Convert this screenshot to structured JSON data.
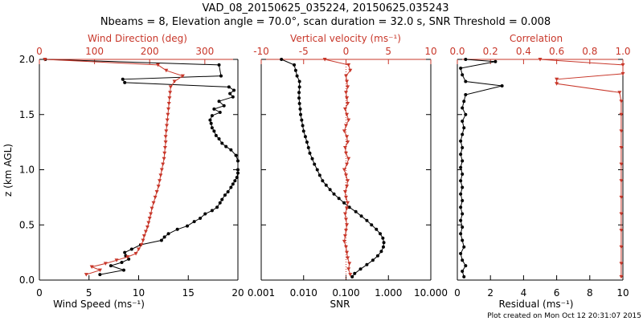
{
  "title_line1": "VAD_08_20150625_035224, 20150625.035243",
  "title_line2": "Nbeams = 8, Elevation angle = 70.0°, scan duration = 32.0 s, SNR Threshold = 0.008",
  "footer": "Plot created on Mon Oct 12 20:31:07 2015",
  "colors": {
    "black": "#000000",
    "red": "#c8372a"
  },
  "chart_data": [
    {
      "type": "line",
      "ylabel": "z (km AGL)",
      "ylim": [
        0,
        2.0
      ],
      "yticks": [
        "0.0",
        "0.5",
        "1.0",
        "1.5",
        "2.0"
      ],
      "bottom_axis": {
        "label": "Wind Speed (ms⁻¹)",
        "range": [
          0,
          20
        ],
        "ticks": [
          "0",
          "5",
          "10",
          "15",
          "20"
        ],
        "color": "#000000"
      },
      "top_axis": {
        "label": "Wind Direction (deg)",
        "range": [
          0,
          360
        ],
        "ticks": [
          "0",
          "100",
          "200",
          "300"
        ],
        "color": "#c8372a"
      },
      "series": [
        {
          "color": "#000000",
          "axis": "bottom",
          "points": [
            [
              6.1,
              0.05
            ],
            [
              8.5,
              0.09
            ],
            [
              7.2,
              0.13
            ],
            [
              8.3,
              0.16
            ],
            [
              9.0,
              0.19
            ],
            [
              8.7,
              0.22
            ],
            [
              8.6,
              0.25
            ],
            [
              9.3,
              0.28
            ],
            [
              10.2,
              0.32
            ],
            [
              12.3,
              0.36
            ],
            [
              12.6,
              0.39
            ],
            [
              13.0,
              0.42
            ],
            [
              13.9,
              0.46
            ],
            [
              14.9,
              0.49
            ],
            [
              15.6,
              0.53
            ],
            [
              16.2,
              0.56
            ],
            [
              16.7,
              0.6
            ],
            [
              17.4,
              0.63
            ],
            [
              17.9,
              0.66
            ],
            [
              18.2,
              0.7
            ],
            [
              18.4,
              0.73
            ],
            [
              18.7,
              0.77
            ],
            [
              19.0,
              0.8
            ],
            [
              19.3,
              0.84
            ],
            [
              19.5,
              0.87
            ],
            [
              19.7,
              0.9
            ],
            [
              19.9,
              0.93
            ],
            [
              20.0,
              0.97
            ],
            [
              20.0,
              1.0
            ],
            [
              20.0,
              1.08
            ],
            [
              19.8,
              1.13
            ],
            [
              19.3,
              1.18
            ],
            [
              18.8,
              1.21
            ],
            [
              18.4,
              1.24
            ],
            [
              18.1,
              1.28
            ],
            [
              17.8,
              1.31
            ],
            [
              17.6,
              1.35
            ],
            [
              17.4,
              1.38
            ],
            [
              17.3,
              1.42
            ],
            [
              17.2,
              1.45
            ],
            [
              17.4,
              1.49
            ],
            [
              18.2,
              1.52
            ],
            [
              17.6,
              1.55
            ],
            [
              18.6,
              1.58
            ],
            [
              18.1,
              1.62
            ],
            [
              19.5,
              1.66
            ],
            [
              19.2,
              1.69
            ],
            [
              19.6,
              1.72
            ],
            [
              19.1,
              1.75
            ],
            [
              8.6,
              1.79
            ],
            [
              8.4,
              1.82
            ],
            [
              18.3,
              1.85
            ],
            [
              18.1,
              1.95
            ],
            [
              0.6,
              2.0
            ]
          ]
        },
        {
          "color": "#c8372a",
          "axis": "top",
          "points": [
            [
              85,
              0.05
            ],
            [
              110,
              0.09
            ],
            [
              95,
              0.12
            ],
            [
              120,
              0.15
            ],
            [
              140,
              0.18
            ],
            [
              160,
              0.21
            ],
            [
              175,
              0.24
            ],
            [
              180,
              0.28
            ],
            [
              185,
              0.32
            ],
            [
              188,
              0.36
            ],
            [
              190,
              0.4
            ],
            [
              193,
              0.44
            ],
            [
              196,
              0.48
            ],
            [
              198,
              0.52
            ],
            [
              200,
              0.56
            ],
            [
              202,
              0.6
            ],
            [
              204,
              0.65
            ],
            [
              207,
              0.7
            ],
            [
              210,
              0.75
            ],
            [
              213,
              0.8
            ],
            [
              216,
              0.85
            ],
            [
              218,
              0.9
            ],
            [
              220,
              0.95
            ],
            [
              222,
              1.0
            ],
            [
              224,
              1.05
            ],
            [
              226,
              1.1
            ],
            [
              227,
              1.15
            ],
            [
              228,
              1.2
            ],
            [
              229,
              1.25
            ],
            [
              229,
              1.3
            ],
            [
              230,
              1.35
            ],
            [
              231,
              1.4
            ],
            [
              232,
              1.45
            ],
            [
              233,
              1.5
            ],
            [
              234,
              1.55
            ],
            [
              235,
              1.6
            ],
            [
              236,
              1.65
            ],
            [
              237,
              1.7
            ],
            [
              238,
              1.75
            ],
            [
              245,
              1.8
            ],
            [
              260,
              1.85
            ],
            [
              230,
              1.9
            ],
            [
              215,
              1.95
            ],
            [
              10,
              2.0
            ]
          ]
        }
      ]
    },
    {
      "type": "line",
      "ylim": [
        0,
        2.0
      ],
      "bottom_axis": {
        "label": "SNR",
        "scale": "log",
        "range": [
          0.001,
          10
        ],
        "ticks": [
          "0.001",
          "0.010",
          "0.100",
          "1.000",
          "10.000"
        ],
        "color": "#000000"
      },
      "top_axis": {
        "label": "Vertical velocity (ms⁻¹)",
        "range": [
          -10,
          10
        ],
        "ticks": [
          "-10",
          "-5",
          "0",
          "5",
          "10"
        ],
        "color": "#c8372a"
      },
      "series": [
        {
          "color": "#000000",
          "axis": "bottom",
          "points": [
            [
              0.14,
              0.03
            ],
            [
              0.16,
              0.06
            ],
            [
              0.22,
              0.1
            ],
            [
              0.31,
              0.14
            ],
            [
              0.43,
              0.18
            ],
            [
              0.56,
              0.22
            ],
            [
              0.68,
              0.26
            ],
            [
              0.76,
              0.3
            ],
            [
              0.78,
              0.34
            ],
            [
              0.74,
              0.38
            ],
            [
              0.64,
              0.42
            ],
            [
              0.52,
              0.46
            ],
            [
              0.4,
              0.5
            ],
            [
              0.31,
              0.54
            ],
            [
              0.23,
              0.58
            ],
            [
              0.17,
              0.62
            ],
            [
              0.12,
              0.66
            ],
            [
              0.09,
              0.7
            ],
            [
              0.068,
              0.74
            ],
            [
              0.052,
              0.78
            ],
            [
              0.042,
              0.82
            ],
            [
              0.034,
              0.86
            ],
            [
              0.028,
              0.9
            ],
            [
              0.024,
              0.95
            ],
            [
              0.021,
              1.0
            ],
            [
              0.018,
              1.05
            ],
            [
              0.016,
              1.1
            ],
            [
              0.014,
              1.15
            ],
            [
              0.013,
              1.2
            ],
            [
              0.012,
              1.25
            ],
            [
              0.011,
              1.3
            ],
            [
              0.01,
              1.35
            ],
            [
              0.0095,
              1.4
            ],
            [
              0.009,
              1.45
            ],
            [
              0.0085,
              1.5
            ],
            [
              0.0083,
              1.55
            ],
            [
              0.008,
              1.6
            ],
            [
              0.0078,
              1.65
            ],
            [
              0.0078,
              1.7
            ],
            [
              0.008,
              1.75
            ],
            [
              0.008,
              1.8
            ],
            [
              0.007,
              1.85
            ],
            [
              0.0065,
              1.9
            ],
            [
              0.006,
              1.95
            ],
            [
              0.003,
              2.0
            ]
          ]
        },
        {
          "color": "#c8372a",
          "axis": "top",
          "points": [
            [
              0.5,
              0.05
            ],
            [
              0.3,
              0.1
            ],
            [
              0.4,
              0.15
            ],
            [
              0.2,
              0.2
            ],
            [
              0.1,
              0.25
            ],
            [
              0.0,
              0.3
            ],
            [
              -0.2,
              0.35
            ],
            [
              -0.1,
              0.4
            ],
            [
              0.0,
              0.45
            ],
            [
              0.1,
              0.5
            ],
            [
              0.0,
              0.55
            ],
            [
              -0.1,
              0.6
            ],
            [
              0.1,
              0.65
            ],
            [
              0.2,
              0.7
            ],
            [
              0.0,
              0.75
            ],
            [
              -0.1,
              0.8
            ],
            [
              0.1,
              0.85
            ],
            [
              0.2,
              0.9
            ],
            [
              0.0,
              0.95
            ],
            [
              -0.2,
              1.0
            ],
            [
              0.1,
              1.05
            ],
            [
              0.3,
              1.1
            ],
            [
              0.0,
              1.15
            ],
            [
              -0.1,
              1.2
            ],
            [
              0.2,
              1.25
            ],
            [
              0.1,
              1.3
            ],
            [
              -0.2,
              1.35
            ],
            [
              0.0,
              1.4
            ],
            [
              0.3,
              1.45
            ],
            [
              0.1,
              1.5
            ],
            [
              -0.1,
              1.55
            ],
            [
              0.2,
              1.6
            ],
            [
              0.1,
              1.65
            ],
            [
              0.0,
              1.7
            ],
            [
              0.2,
              1.75
            ],
            [
              0.1,
              1.8
            ],
            [
              0.0,
              1.85
            ],
            [
              0.5,
              1.9
            ],
            [
              0.3,
              1.95
            ],
            [
              -2.5,
              2.0
            ]
          ]
        }
      ]
    },
    {
      "type": "line",
      "ylim": [
        0,
        2.0
      ],
      "bottom_axis": {
        "label": "Residual (ms⁻¹)",
        "range": [
          0,
          10
        ],
        "ticks": [
          "0",
          "2",
          "4",
          "6",
          "8",
          "10"
        ],
        "color": "#000000"
      },
      "top_axis": {
        "label": "Correlation",
        "range": [
          0,
          1.0
        ],
        "ticks": [
          "0.0",
          "0.2",
          "0.4",
          "0.6",
          "0.8",
          "1.0"
        ],
        "color": "#c8372a"
      },
      "series": [
        {
          "color": "#000000",
          "axis": "bottom",
          "points": [
            [
              0.4,
              0.03
            ],
            [
              0.3,
              0.08
            ],
            [
              0.5,
              0.13
            ],
            [
              0.3,
              0.18
            ],
            [
              0.2,
              0.24
            ],
            [
              0.4,
              0.3
            ],
            [
              0.3,
              0.36
            ],
            [
              0.2,
              0.42
            ],
            [
              0.3,
              0.48
            ],
            [
              0.2,
              0.54
            ],
            [
              0.3,
              0.6
            ],
            [
              0.2,
              0.66
            ],
            [
              0.3,
              0.72
            ],
            [
              0.2,
              0.78
            ],
            [
              0.3,
              0.84
            ],
            [
              0.2,
              0.9
            ],
            [
              0.3,
              0.96
            ],
            [
              0.2,
              1.02
            ],
            [
              0.3,
              1.08
            ],
            [
              0.2,
              1.14
            ],
            [
              0.3,
              1.2
            ],
            [
              0.2,
              1.26
            ],
            [
              0.3,
              1.32
            ],
            [
              0.4,
              1.38
            ],
            [
              0.3,
              1.44
            ],
            [
              0.5,
              1.5
            ],
            [
              0.3,
              1.56
            ],
            [
              0.4,
              1.62
            ],
            [
              0.5,
              1.68
            ],
            [
              2.7,
              1.76
            ],
            [
              0.5,
              1.8
            ],
            [
              0.3,
              1.86
            ],
            [
              0.2,
              1.92
            ],
            [
              2.3,
              1.98
            ],
            [
              0.5,
              2.0
            ]
          ]
        },
        {
          "color": "#c8372a",
          "axis": "top",
          "points": [
            [
              0.99,
              0.03
            ],
            [
              0.99,
              0.15
            ],
            [
              0.99,
              0.3
            ],
            [
              0.99,
              0.45
            ],
            [
              0.99,
              0.6
            ],
            [
              0.99,
              0.75
            ],
            [
              0.99,
              0.9
            ],
            [
              0.99,
              1.05
            ],
            [
              0.99,
              1.2
            ],
            [
              0.99,
              1.35
            ],
            [
              0.99,
              1.5
            ],
            [
              0.99,
              1.62
            ],
            [
              0.98,
              1.7
            ],
            [
              0.6,
              1.78
            ],
            [
              0.6,
              1.82
            ],
            [
              1.0,
              1.87
            ],
            [
              1.0,
              1.95
            ],
            [
              0.5,
              2.0
            ]
          ]
        }
      ]
    }
  ]
}
